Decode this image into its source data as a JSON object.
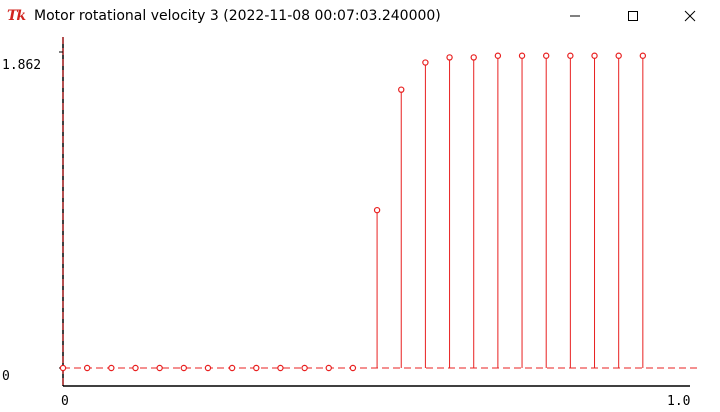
{
  "window": {
    "title": "Motor rotational velocity 3 (2022-11-08 00:07:03.240000)",
    "icon": "tk-feather-icon",
    "buttons": [
      "minimize-icon",
      "maximize-icon",
      "close-icon"
    ]
  },
  "chart_data": {
    "type": "stem",
    "title": "Motor rotational velocity 3 (2022-11-08 00:07:03.240000)",
    "xlabel": "",
    "ylabel": "",
    "y_tick_labels": [
      "1.862",
      "0"
    ],
    "x_tick_labels": [
      "0",
      "1.0"
    ],
    "ylim": [
      0,
      1.862
    ],
    "xlim": [
      0,
      1.0
    ],
    "baseline_style": "dashed",
    "color": "#e82020",
    "series": [
      {
        "x": [
          0.0,
          0.04,
          0.08,
          0.12,
          0.16,
          0.2,
          0.24,
          0.28,
          0.32,
          0.36,
          0.4,
          0.44,
          0.48,
          0.52,
          0.56,
          0.6,
          0.64,
          0.68,
          0.72,
          0.76,
          0.8,
          0.84,
          0.88,
          0.92,
          0.96
        ],
        "values": [
          0,
          0,
          0,
          0,
          0,
          0,
          0,
          0,
          0,
          0,
          0,
          0,
          0,
          0.93,
          1.64,
          1.8,
          1.83,
          1.83,
          1.84,
          1.84,
          1.84,
          1.84,
          1.84,
          1.84,
          1.84
        ]
      }
    ]
  }
}
